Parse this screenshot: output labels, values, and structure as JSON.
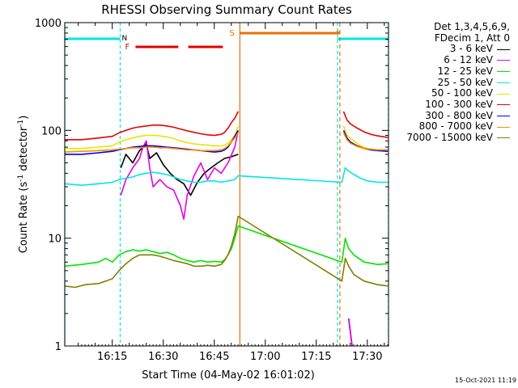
{
  "chart_data": {
    "type": "line",
    "title": "RHESSI Observing Summary Count Rates",
    "xlabel": "Start Time (04-May-02 16:01:02)",
    "ylabel_main": "Count Rate (s",
    "ylabel_sup1": "-1",
    "ylabel_mid": " detector",
    "ylabel_sup2": "-1",
    "ylabel_end": ")",
    "yscale": "log",
    "ylim": [
      1,
      1000
    ],
    "xlim_minutes": [
      0,
      95.2
    ],
    "x_ticks": [
      {
        "label": "16:15",
        "minutes": 13.97
      },
      {
        "label": "16:30",
        "minutes": 28.97
      },
      {
        "label": "16:45",
        "minutes": 43.97
      },
      {
        "label": "17:00",
        "minutes": 58.97
      },
      {
        "label": "17:15",
        "minutes": 73.97
      },
      {
        "label": "17:30",
        "minutes": 88.97
      }
    ],
    "y_tick_labels": [
      "1",
      "10",
      "100",
      "1000"
    ],
    "legend_header": [
      "Det 1,3,4,5,6,9,",
      "FDecim 1, Att 0"
    ],
    "stamp": "15-Oct-2021 11:19",
    "markers": {
      "N": "N",
      "F": "F",
      "S": "S"
    },
    "night_intervals_minutes": [
      [
        0,
        16.3
      ],
      [
        80.2,
        95.2
      ]
    ],
    "saa_interval_minutes": [
      51.5,
      80.9
    ],
    "flare_segments_minutes": [
      [
        20.8,
        33.4
      ],
      [
        36.3,
        46.5
      ]
    ],
    "series": [
      {
        "name": "3 - 6 keV",
        "color": "#000000",
        "points": [
          [
            16.5,
            45
          ],
          [
            18,
            60
          ],
          [
            20,
            50
          ],
          [
            22,
            65
          ],
          [
            24,
            75
          ],
          [
            25,
            55
          ],
          [
            27,
            62
          ],
          [
            29,
            48
          ],
          [
            31,
            40
          ],
          [
            33,
            35
          ],
          [
            35,
            32
          ],
          [
            37,
            25
          ],
          [
            39,
            33
          ],
          [
            41,
            40
          ],
          [
            43,
            45
          ],
          [
            45,
            50
          ],
          [
            47,
            55
          ],
          [
            49,
            57
          ],
          [
            51,
            60
          ],
          [
            81.5,
            0
          ],
          [
            83.5,
            1.8
          ],
          [
            84.5,
            1
          ]
        ]
      },
      {
        "name": "6 - 12 keV",
        "color": "#e600e6",
        "points": [
          [
            16.5,
            25
          ],
          [
            18,
            35
          ],
          [
            20,
            45
          ],
          [
            22,
            55
          ],
          [
            23,
            70
          ],
          [
            24,
            80
          ],
          [
            25,
            45
          ],
          [
            26,
            30
          ],
          [
            28,
            35
          ],
          [
            30,
            30
          ],
          [
            32,
            28
          ],
          [
            34,
            20
          ],
          [
            35,
            15
          ],
          [
            36,
            25
          ],
          [
            38,
            38
          ],
          [
            40,
            50
          ],
          [
            42,
            35
          ],
          [
            44,
            45
          ],
          [
            46,
            40
          ],
          [
            48,
            50
          ],
          [
            50,
            70
          ],
          [
            51,
            100
          ],
          [
            81.5,
            0
          ],
          [
            83.5,
            1.8
          ],
          [
            84.5,
            1
          ]
        ]
      },
      {
        "name": "12 - 25 keV",
        "color": "#00e600",
        "points": [
          [
            0,
            5.5
          ],
          [
            5,
            5.7
          ],
          [
            10,
            6
          ],
          [
            12,
            6.5
          ],
          [
            14,
            6
          ],
          [
            16,
            7
          ],
          [
            18,
            7.5
          ],
          [
            20,
            7.8
          ],
          [
            22,
            7.6
          ],
          [
            24,
            7.8
          ],
          [
            26,
            7.5
          ],
          [
            28,
            7.2
          ],
          [
            30,
            7.4
          ],
          [
            32,
            7.0
          ],
          [
            34,
            6.5
          ],
          [
            36,
            6.2
          ],
          [
            38,
            6.0
          ],
          [
            40,
            6.2
          ],
          [
            42,
            6.0
          ],
          [
            44,
            6.1
          ],
          [
            46,
            6.0
          ],
          [
            47,
            6.3
          ],
          [
            48,
            7
          ],
          [
            49,
            8
          ],
          [
            50,
            10
          ],
          [
            51,
            13
          ],
          [
            81.5,
            6
          ],
          [
            82.5,
            10
          ],
          [
            83.5,
            8
          ],
          [
            85,
            7
          ],
          [
            88,
            6
          ],
          [
            92,
            5.7
          ],
          [
            95,
            5.8
          ]
        ]
      },
      {
        "name": "25 - 50 keV",
        "color": "#00e6e6",
        "points": [
          [
            0,
            32
          ],
          [
            5,
            31
          ],
          [
            10,
            32
          ],
          [
            14,
            33
          ],
          [
            16,
            35
          ],
          [
            18,
            36
          ],
          [
            20,
            37
          ],
          [
            22,
            39
          ],
          [
            24,
            40
          ],
          [
            26,
            41
          ],
          [
            28,
            40
          ],
          [
            30,
            39
          ],
          [
            32,
            37
          ],
          [
            34,
            35
          ],
          [
            36,
            34
          ],
          [
            38,
            33
          ],
          [
            40,
            33
          ],
          [
            42,
            34
          ],
          [
            44,
            34
          ],
          [
            46,
            33
          ],
          [
            48,
            34
          ],
          [
            50,
            35
          ],
          [
            51,
            38
          ],
          [
            81.5,
            33
          ],
          [
            82.5,
            45
          ],
          [
            83.5,
            42
          ],
          [
            85,
            39
          ],
          [
            87,
            36
          ],
          [
            89,
            34
          ],
          [
            92,
            33
          ],
          [
            95,
            33
          ]
        ]
      },
      {
        "name": "50 - 100 keV",
        "color": "#e6e600",
        "points": [
          [
            0,
            68
          ],
          [
            5,
            68
          ],
          [
            10,
            70
          ],
          [
            14,
            72
          ],
          [
            16,
            78
          ],
          [
            18,
            82
          ],
          [
            20,
            85
          ],
          [
            22,
            88
          ],
          [
            24,
            90
          ],
          [
            26,
            90
          ],
          [
            28,
            89
          ],
          [
            30,
            87
          ],
          [
            32,
            84
          ],
          [
            34,
            80
          ],
          [
            36,
            77
          ],
          [
            38,
            75
          ],
          [
            40,
            74
          ],
          [
            42,
            73
          ],
          [
            44,
            72
          ],
          [
            46,
            72
          ],
          [
            47,
            73
          ],
          [
            48,
            76
          ],
          [
            49,
            82
          ],
          [
            50,
            90
          ],
          [
            51,
            110
          ],
          [
            81.5,
            0
          ],
          [
            82,
            110
          ],
          [
            83,
            90
          ],
          [
            85,
            80
          ],
          [
            87,
            72
          ],
          [
            89,
            68
          ],
          [
            92,
            65
          ],
          [
            95,
            64
          ]
        ]
      },
      {
        "name": "100 - 300 keV",
        "color": "#e60000",
        "points": [
          [
            0,
            82
          ],
          [
            5,
            82
          ],
          [
            10,
            85
          ],
          [
            14,
            88
          ],
          [
            16,
            95
          ],
          [
            18,
            100
          ],
          [
            20,
            105
          ],
          [
            22,
            108
          ],
          [
            24,
            110
          ],
          [
            26,
            112
          ],
          [
            28,
            112
          ],
          [
            30,
            110
          ],
          [
            32,
            107
          ],
          [
            34,
            103
          ],
          [
            36,
            99
          ],
          [
            38,
            96
          ],
          [
            40,
            93
          ],
          [
            42,
            91
          ],
          [
            44,
            90
          ],
          [
            46,
            92
          ],
          [
            47,
            96
          ],
          [
            48,
            105
          ],
          [
            49,
            118
          ],
          [
            50,
            130
          ],
          [
            51,
            150
          ],
          [
            81.5,
            0
          ],
          [
            82,
            150
          ],
          [
            83,
            125
          ],
          [
            84,
            115
          ],
          [
            86,
            105
          ],
          [
            88,
            97
          ],
          [
            90,
            92
          ],
          [
            92,
            89
          ],
          [
            95,
            86
          ]
        ]
      },
      {
        "name": "300 - 800 keV",
        "color": "#0000e6",
        "points": [
          [
            0,
            60
          ],
          [
            5,
            60
          ],
          [
            10,
            62
          ],
          [
            14,
            64
          ],
          [
            16,
            66
          ],
          [
            18,
            68
          ],
          [
            20,
            70
          ],
          [
            22,
            71
          ],
          [
            24,
            72
          ],
          [
            26,
            72
          ],
          [
            28,
            71
          ],
          [
            30,
            70
          ],
          [
            32,
            69
          ],
          [
            34,
            68
          ],
          [
            36,
            67
          ],
          [
            38,
            66
          ],
          [
            40,
            65
          ],
          [
            42,
            64
          ],
          [
            44,
            63
          ],
          [
            46,
            64
          ],
          [
            47,
            66
          ],
          [
            48,
            70
          ],
          [
            49,
            78
          ],
          [
            50,
            88
          ],
          [
            51,
            100
          ],
          [
            81.5,
            0
          ],
          [
            82,
            100
          ],
          [
            83,
            85
          ],
          [
            84,
            78
          ],
          [
            86,
            72
          ],
          [
            88,
            68
          ],
          [
            90,
            66
          ],
          [
            92,
            65
          ],
          [
            95,
            64
          ]
        ]
      },
      {
        "name": "800 - 7000 keV",
        "color": "#ff8c00",
        "points": [
          [
            0,
            63
          ],
          [
            5,
            64
          ],
          [
            10,
            65
          ],
          [
            14,
            66
          ],
          [
            16,
            67
          ],
          [
            18,
            68
          ],
          [
            20,
            69
          ],
          [
            22,
            69
          ],
          [
            24,
            70
          ],
          [
            26,
            70
          ],
          [
            28,
            69
          ],
          [
            30,
            69
          ],
          [
            32,
            68
          ],
          [
            34,
            67
          ],
          [
            36,
            66
          ],
          [
            38,
            66
          ],
          [
            40,
            65
          ],
          [
            42,
            65
          ],
          [
            44,
            65
          ],
          [
            46,
            66
          ],
          [
            47,
            68
          ],
          [
            48,
            72
          ],
          [
            49,
            78
          ],
          [
            50,
            85
          ],
          [
            51,
            95
          ],
          [
            81.5,
            0
          ],
          [
            82,
            95
          ],
          [
            83,
            82
          ],
          [
            84,
            76
          ],
          [
            86,
            71
          ],
          [
            88,
            68
          ],
          [
            90,
            67
          ],
          [
            92,
            66
          ],
          [
            95,
            66
          ]
        ]
      },
      {
        "name": "7000 - 15000 keV",
        "color": "#808000",
        "points": [
          [
            0,
            3.6
          ],
          [
            3,
            3.5
          ],
          [
            6,
            3.7
          ],
          [
            10,
            3.8
          ],
          [
            14,
            4.2
          ],
          [
            16,
            5
          ],
          [
            18,
            5.8
          ],
          [
            20,
            6.5
          ],
          [
            22,
            7
          ],
          [
            24,
            7
          ],
          [
            26,
            7
          ],
          [
            28,
            6.8
          ],
          [
            30,
            6.5
          ],
          [
            32,
            6.2
          ],
          [
            34,
            6
          ],
          [
            36,
            5.8
          ],
          [
            38,
            5.5
          ],
          [
            40,
            5.5
          ],
          [
            42,
            5.6
          ],
          [
            44,
            5.5
          ],
          [
            46,
            5.7
          ],
          [
            47,
            6.2
          ],
          [
            48,
            7
          ],
          [
            49,
            8.5
          ],
          [
            50,
            11
          ],
          [
            51,
            16
          ],
          [
            81.5,
            4
          ],
          [
            82.5,
            6.5
          ],
          [
            83.5,
            5.5
          ],
          [
            85,
            4.6
          ],
          [
            88,
            4
          ],
          [
            92,
            3.7
          ],
          [
            95,
            3.6
          ]
        ]
      }
    ]
  }
}
